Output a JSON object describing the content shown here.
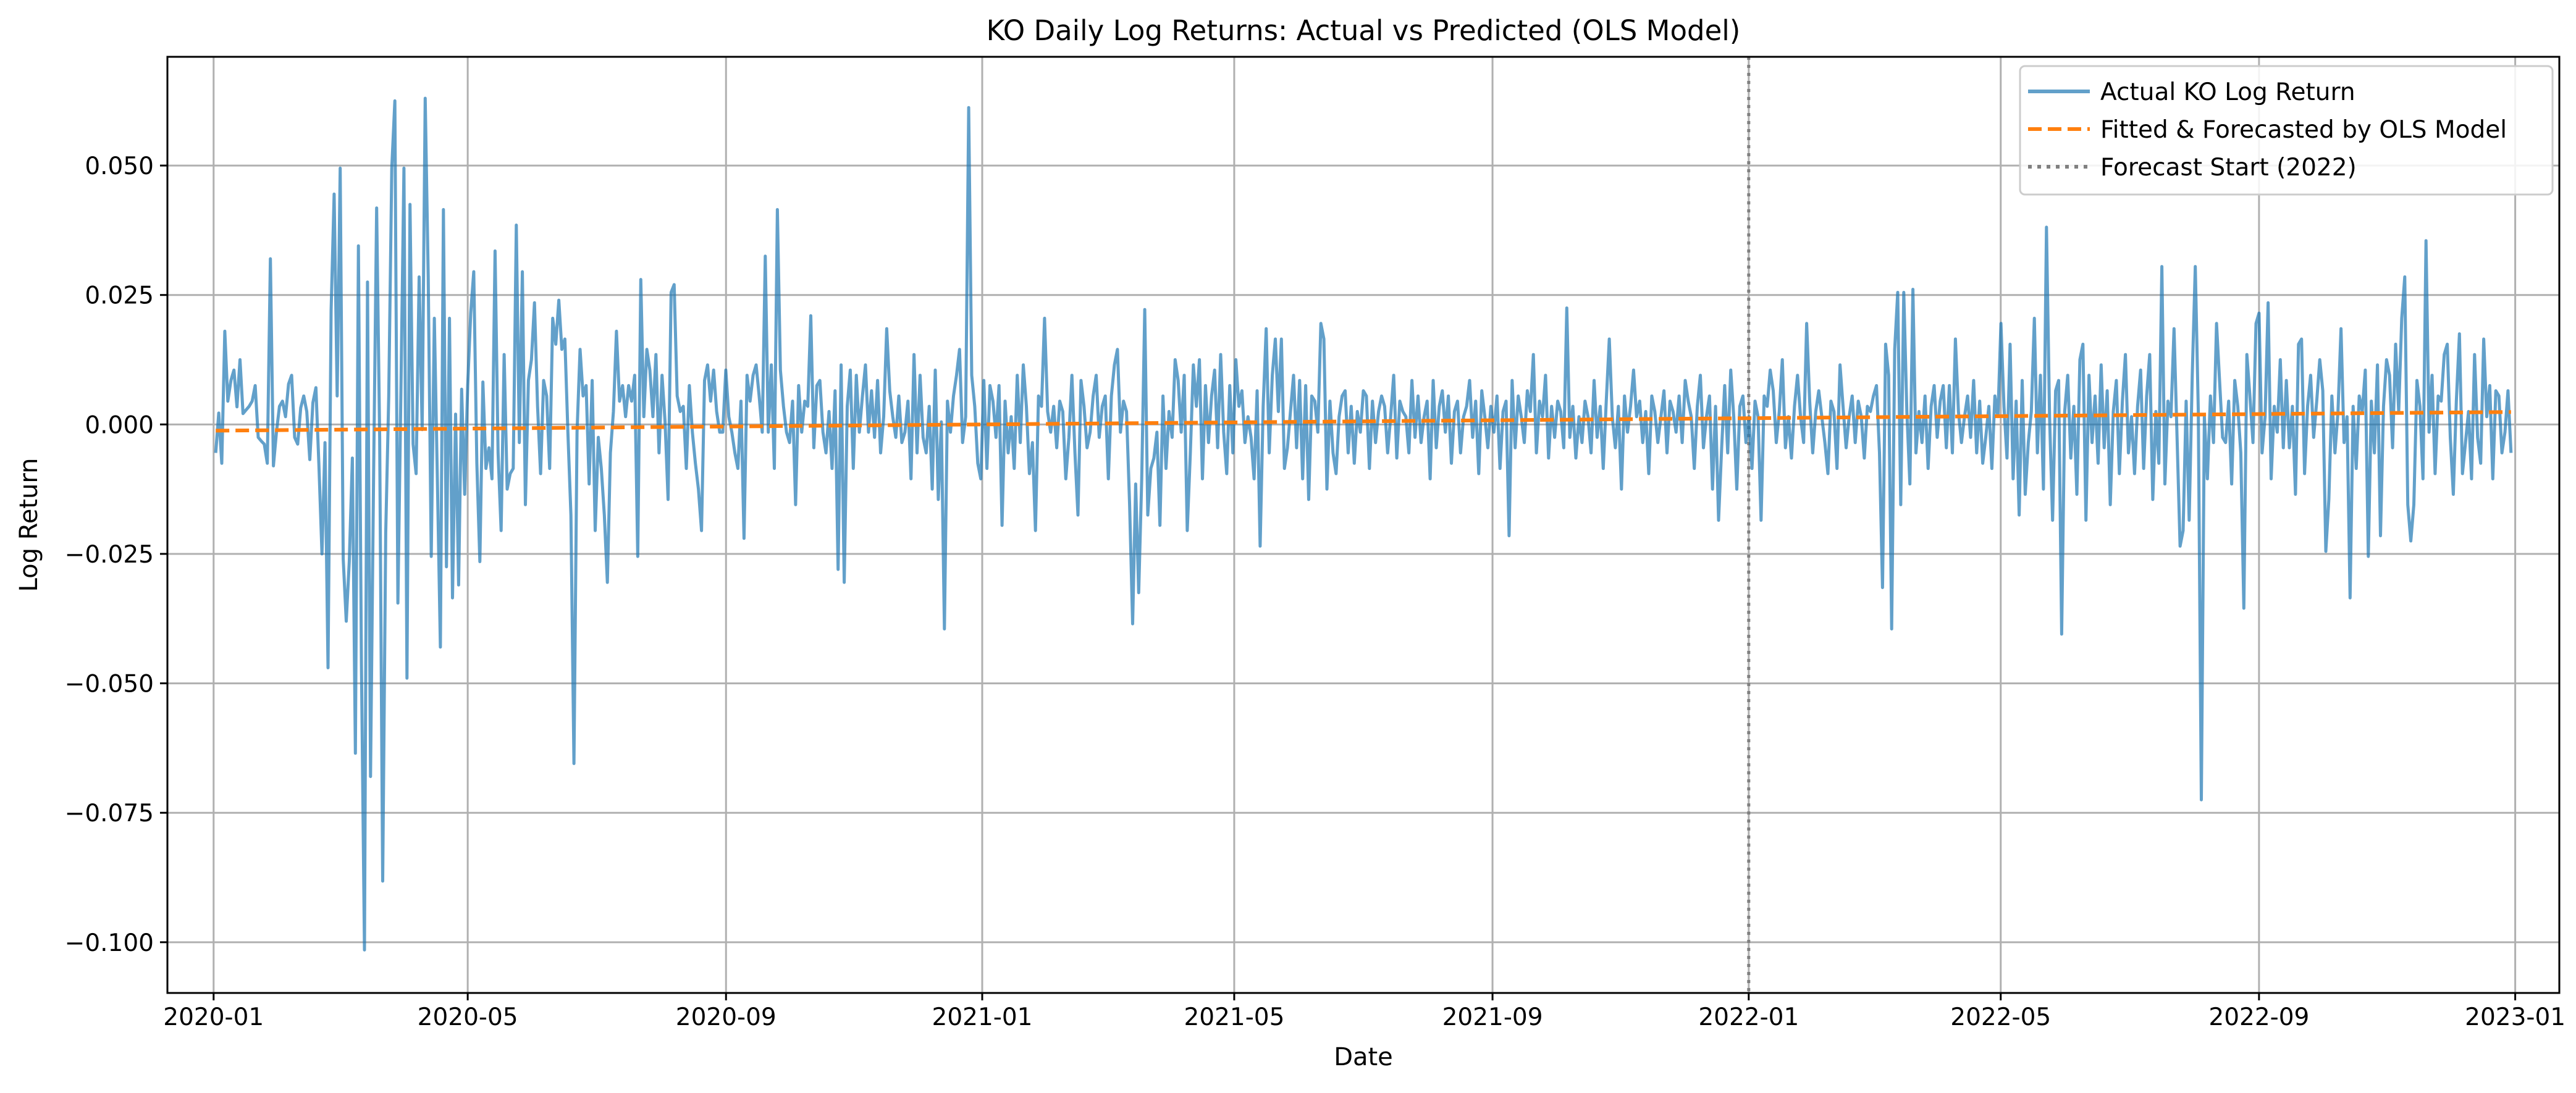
{
  "chart_data": {
    "type": "line",
    "title": "KO Daily Log Returns: Actual vs Predicted (OLS Model)",
    "xlabel": "Date",
    "ylabel": "Log Return",
    "x_range": [
      "2019-12-10",
      "2023-01-22"
    ],
    "y_range": [
      -0.1098,
      0.071
    ],
    "x_ticks": [
      "2020-01",
      "2020-05",
      "2020-09",
      "2021-01",
      "2021-05",
      "2021-09",
      "2022-01",
      "2022-05",
      "2022-09",
      "2023-01"
    ],
    "y_ticks": [
      0.05,
      0.025,
      0.0,
      -0.025,
      -0.05,
      -0.075,
      -0.1
    ],
    "y_tick_labels": [
      "0.050",
      "0.025",
      "0.000",
      "−0.025",
      "−0.050",
      "−0.075",
      "−0.100"
    ],
    "grid": true,
    "legend_position": "top-right",
    "forecast_start": {
      "x": "2022-01-01",
      "label": "Forecast Start (2022)",
      "color": "#808080"
    },
    "series": [
      {
        "name": "Actual KO Log Return",
        "color": "#1f77b4",
        "style": "solid",
        "x_start": "2020-01-02",
        "x_end": "2022-12-30",
        "values": [
          -0.0055,
          0.0022,
          -0.0075,
          0.018,
          0.0045,
          0.0085,
          0.0105,
          0.0034,
          0.0125,
          0.0021,
          0.0028,
          0.0035,
          0.0045,
          0.0075,
          -0.0025,
          -0.0032,
          -0.0038,
          -0.0075,
          0.032,
          -0.008,
          -0.0015,
          0.0035,
          0.0045,
          0.0015,
          0.0078,
          0.0095,
          -0.0025,
          -0.0038,
          0.0032,
          0.0055,
          0.0025,
          -0.0068,
          0.0042,
          0.0071,
          -0.008,
          -0.025,
          -0.0035,
          -0.047,
          0.022,
          0.0445,
          0.0055,
          0.0495,
          -0.026,
          -0.038,
          -0.0265,
          -0.0065,
          -0.0635,
          0.0345,
          -0.0465,
          -0.1015,
          0.0275,
          -0.068,
          -0.0095,
          0.0418,
          -0.0025,
          -0.0882,
          -0.021,
          0.0055,
          0.0495,
          0.0625,
          -0.0345,
          0.0065,
          0.0495,
          -0.049,
          0.0425,
          -0.0038,
          -0.0095,
          0.0285,
          -0.001,
          0.063,
          0.0285,
          -0.0255,
          0.0205,
          -0.0105,
          -0.043,
          0.0415,
          -0.0275,
          0.0205,
          -0.0335,
          0.002,
          -0.031,
          0.0068,
          -0.0135,
          0.0075,
          0.0215,
          0.0295,
          -0.0075,
          -0.0265,
          0.0082,
          -0.0085,
          -0.0045,
          -0.0105,
          0.0335,
          -0.0055,
          -0.0205,
          0.0135,
          -0.0125,
          -0.0095,
          -0.0085,
          0.0385,
          -0.0035,
          0.0295,
          -0.0155,
          0.0085,
          0.0125,
          0.0235,
          0.0035,
          -0.0095,
          0.0085,
          0.0055,
          -0.0085,
          0.0205,
          0.0155,
          0.024,
          0.0145,
          0.0165,
          -0.0015,
          -0.0175,
          -0.0655,
          -0.0015,
          0.0145,
          0.0055,
          0.0075,
          -0.0115,
          0.0085,
          -0.0205,
          -0.0025,
          -0.0085,
          -0.0175,
          -0.0305,
          -0.0055,
          0.0025,
          0.018,
          0.0045,
          0.0075,
          0.0015,
          0.0075,
          0.0045,
          0.0095,
          -0.0255,
          0.028,
          0.0015,
          0.0145,
          0.0105,
          0.0015,
          0.0135,
          -0.0055,
          0.0095,
          0.0005,
          -0.0145,
          0.0255,
          0.027,
          0.0055,
          0.0025,
          0.0035,
          -0.0085,
          0.0075,
          -0.0015,
          -0.0075,
          -0.0125,
          -0.0205,
          0.0085,
          0.0115,
          0.0045,
          0.0105,
          0.0025,
          -0.0015,
          -0.0015,
          0.0105,
          0.0015,
          -0.0015,
          -0.0055,
          -0.0085,
          0.0045,
          -0.022,
          0.0095,
          0.0045,
          0.0095,
          0.0115,
          0.0055,
          -0.0015,
          0.0325,
          -0.0015,
          0.0115,
          -0.0085,
          0.0415,
          0.0105,
          0.0035,
          -0.0015,
          -0.0035,
          0.0045,
          -0.0155,
          0.0075,
          -0.0015,
          0.0045,
          0.0035,
          0.021,
          -0.0045,
          0.0075,
          0.0085,
          -0.0015,
          -0.0055,
          0.0025,
          -0.0085,
          0.0065,
          -0.028,
          0.0115,
          -0.0305,
          0.0035,
          0.0105,
          -0.0085,
          0.0095,
          -0.0015,
          0.0055,
          0.0115,
          -0.0015,
          0.0065,
          -0.0025,
          0.0085,
          -0.0055,
          0.0015,
          0.0185,
          0.0065,
          0.0015,
          -0.0025,
          0.0055,
          -0.0035,
          -0.0015,
          0.0045,
          -0.0105,
          0.0135,
          -0.0055,
          0.0095,
          -0.0025,
          -0.0055,
          0.0035,
          -0.0125,
          0.0105,
          -0.0145,
          0.0005,
          -0.0395,
          0.0045,
          -0.0015,
          0.0055,
          0.0095,
          0.0145,
          -0.0035,
          0.0015,
          0.0612,
          0.0095,
          0.0035,
          -0.0075,
          -0.0105,
          0.0085,
          -0.0085,
          0.0075,
          0.0045,
          -0.0025,
          0.0075,
          -0.0195,
          0.0045,
          -0.0055,
          0.0015,
          -0.0085,
          0.0095,
          -0.0035,
          0.0115,
          0.0035,
          -0.0095,
          -0.0035,
          -0.0205,
          0.0055,
          0.0035,
          0.0205,
          0.0025,
          -0.0015,
          0.0035,
          -0.0045,
          0.0045,
          0.0025,
          -0.0105,
          -0.0025,
          0.0095,
          -0.0055,
          -0.0175,
          0.0085,
          0.0035,
          -0.0045,
          -0.0015,
          0.0055,
          0.0095,
          -0.0025,
          0.0035,
          0.0055,
          -0.0105,
          0.0055,
          0.0115,
          0.0145,
          -0.0015,
          0.0045,
          0.0025,
          -0.0155,
          -0.0385,
          -0.0115,
          -0.0325,
          -0.0105,
          0.0222,
          -0.0175,
          -0.0085,
          -0.0065,
          -0.0015,
          -0.0195,
          0.0055,
          -0.0085,
          0.0025,
          -0.0025,
          0.0125,
          0.0085,
          -0.0015,
          0.0095,
          -0.0205,
          -0.0055,
          0.0115,
          0.0035,
          0.0125,
          -0.0105,
          0.0075,
          -0.0035,
          0.0055,
          0.0105,
          -0.0045,
          0.0135,
          -0.0015,
          -0.0095,
          0.0075,
          -0.0055,
          0.0125,
          0.0035,
          0.0065,
          -0.0035,
          0.0015,
          -0.0025,
          -0.0105,
          0.0065,
          -0.0235,
          0.0035,
          0.0185,
          -0.0055,
          0.0095,
          0.0165,
          0.0025,
          0.0165,
          -0.0085,
          -0.0045,
          0.0025,
          0.0095,
          -0.0045,
          0.0085,
          -0.0105,
          0.0075,
          -0.0145,
          0.0055,
          0.0045,
          -0.0015,
          0.0195,
          0.0165,
          -0.0125,
          0.0045,
          -0.0055,
          -0.0095,
          0.0015,
          0.0055,
          0.0065,
          -0.0055,
          0.0035,
          -0.0075,
          0.0025,
          -0.0015,
          0.0065,
          0.0055,
          -0.0085,
          0.0045,
          -0.0035,
          0.0025,
          0.0055,
          0.0035,
          -0.0055,
          0.0015,
          0.0095,
          -0.0065,
          0.0045,
          0.0025,
          0.0015,
          -0.0055,
          0.0085,
          -0.0025,
          0.0055,
          -0.0035,
          0.0015,
          0.0045,
          -0.0105,
          0.0085,
          -0.0045,
          0.0035,
          0.0065,
          -0.0015,
          0.0055,
          -0.0075,
          0.0025,
          0.0045,
          -0.0055,
          0.0015,
          0.0035,
          0.0085,
          -0.0025,
          0.0045,
          -0.0095,
          0.0065,
          0.0015,
          -0.0045,
          0.0035,
          -0.0015,
          0.0055,
          -0.0085,
          0.0025,
          0.0045,
          -0.0215,
          0.0085,
          -0.0045,
          0.0055,
          0.0015,
          -0.0035,
          0.0065,
          0.0025,
          0.0135,
          -0.0055,
          0.0045,
          0.0015,
          0.0095,
          -0.0065,
          0.0035,
          -0.0025,
          0.0045,
          0.0025,
          -0.0045,
          0.0225,
          -0.0025,
          0.0035,
          -0.0065,
          0.0015,
          -0.0035,
          0.0045,
          0.0015,
          -0.0055,
          0.0085,
          -0.0025,
          0.0035,
          -0.0085,
          0.0045,
          0.0165,
          0.0015,
          -0.0045,
          0.0035,
          -0.0125,
          0.0055,
          -0.0015,
          0.0035,
          0.0105,
          0.0015,
          0.0045,
          -0.0035,
          0.0025,
          -0.0095,
          0.0055,
          0.0025,
          -0.0035,
          0.0015,
          0.0065,
          -0.0055,
          0.0045,
          0.0025,
          -0.0015,
          0.0055,
          -0.0035,
          0.0085,
          0.0045,
          0.0015,
          -0.0085,
          0.0035,
          0.0095,
          -0.0045,
          0.0015,
          0.0055,
          -0.0125,
          0.0035,
          -0.0185,
          -0.0045,
          0.0075,
          -0.0055,
          0.0105,
          0.0015,
          -0.0125,
          0.0035,
          0.0055,
          -0.0035,
          0.0015,
          -0.0085,
          0.0045,
          0.0015,
          -0.0185,
          0.0055,
          0.0035,
          0.0105,
          0.0065,
          -0.0035,
          0.0025,
          0.0125,
          -0.0045,
          0.0015,
          -0.0065,
          0.0035,
          0.0095,
          0.0015,
          -0.0035,
          0.0195,
          0.0045,
          -0.0055,
          0.0025,
          0.0065,
          0.0015,
          -0.0035,
          -0.0095,
          0.0045,
          0.0025,
          -0.0085,
          0.0115,
          0.0035,
          -0.0045,
          0.0015,
          0.0055,
          -0.0035,
          0.0045,
          0.0015,
          -0.0065,
          0.0035,
          0.0025,
          0.0055,
          0.0075,
          -0.0055,
          -0.0315,
          0.0155,
          0.0095,
          -0.0395,
          0.0145,
          0.0255,
          -0.0155,
          0.0255,
          0.0025,
          -0.0115,
          0.0261,
          -0.0055,
          0.0025,
          -0.0035,
          0.0055,
          -0.0085,
          0.0035,
          0.0075,
          -0.0025,
          0.0045,
          0.0075,
          -0.0045,
          0.0075,
          -0.0055,
          0.0165,
          0.0025,
          -0.0035,
          0.0015,
          0.0055,
          -0.0025,
          0.0085,
          -0.0055,
          0.0045,
          -0.0075,
          -0.0025,
          0.0035,
          -0.0085,
          0.0055,
          0.0015,
          0.0195,
          0.0035,
          -0.0065,
          0.0155,
          -0.0105,
          0.0045,
          -0.0175,
          0.0085,
          -0.0135,
          -0.0035,
          0.0025,
          0.0205,
          -0.0055,
          0.0095,
          -0.0125,
          0.0381,
          0.0015,
          -0.0185,
          0.0065,
          0.0085,
          -0.0405,
          0.0025,
          0.0095,
          -0.0065,
          0.0035,
          -0.0135,
          0.0125,
          0.0155,
          -0.0185,
          0.0095,
          -0.0035,
          0.0055,
          -0.0075,
          0.0115,
          -0.0045,
          0.0065,
          -0.0155,
          0.0025,
          0.0085,
          -0.0095,
          0.0045,
          0.0135,
          -0.0055,
          0.0015,
          -0.0095,
          0.0035,
          0.0105,
          -0.0085,
          0.0055,
          0.0135,
          -0.0145,
          0.0025,
          -0.0075,
          0.0305,
          -0.0115,
          0.0045,
          0.0015,
          0.0185,
          -0.0025,
          -0.0235,
          -0.0205,
          0.0045,
          -0.0185,
          0.0095,
          0.0305,
          0.0025,
          -0.0725,
          0.0015,
          -0.0105,
          0.0055,
          -0.0035,
          0.0195,
          0.0085,
          -0.0025,
          -0.0035,
          0.0045,
          -0.0115,
          0.0085,
          0.0035,
          -0.0055,
          -0.0355,
          0.0135,
          0.0055,
          -0.0035,
          0.0195,
          0.0215,
          -0.0055,
          0.0015,
          0.0235,
          -0.0105,
          0.0035,
          -0.0015,
          0.0125,
          -0.0045,
          0.0085,
          -0.0045,
          0.0035,
          -0.0135,
          0.0155,
          0.0165,
          -0.0095,
          0.0035,
          0.0095,
          -0.0025,
          0.0045,
          0.0125,
          0.0065,
          -0.0245,
          -0.0145,
          0.0055,
          -0.0055,
          0.0025,
          0.0185,
          -0.0035,
          0.0015,
          -0.0335,
          0.0035,
          -0.0085,
          0.0055,
          0.0025,
          0.0105,
          -0.0255,
          0.0045,
          -0.0055,
          0.0115,
          -0.0215,
          0.0035,
          0.0125,
          0.0095,
          -0.0045,
          0.0155,
          0.0025,
          0.0205,
          0.0285,
          -0.0155,
          -0.0225,
          -0.0155,
          0.0085,
          0.0035,
          -0.0105,
          0.0355,
          -0.0015,
          0.0095,
          -0.0095,
          0.0055,
          0.0045,
          0.0135,
          0.0155,
          -0.0025,
          -0.0135,
          0.0045,
          0.0175,
          -0.0095,
          -0.0035,
          0.0025,
          -0.0105,
          0.0135,
          -0.0025,
          -0.0075,
          0.0165,
          0.0015,
          0.0075,
          -0.0105,
          0.0065,
          0.0055,
          -0.0055,
          -0.0015,
          0.0065,
          -0.0055
        ]
      },
      {
        "name": "Fitted & Forecasted by OLS Model",
        "color": "#ff7f0e",
        "style": "dashed",
        "x": [
          "2020-01-02",
          "2022-12-30"
        ],
        "values": [
          -0.0012,
          0.0024
        ]
      }
    ]
  }
}
